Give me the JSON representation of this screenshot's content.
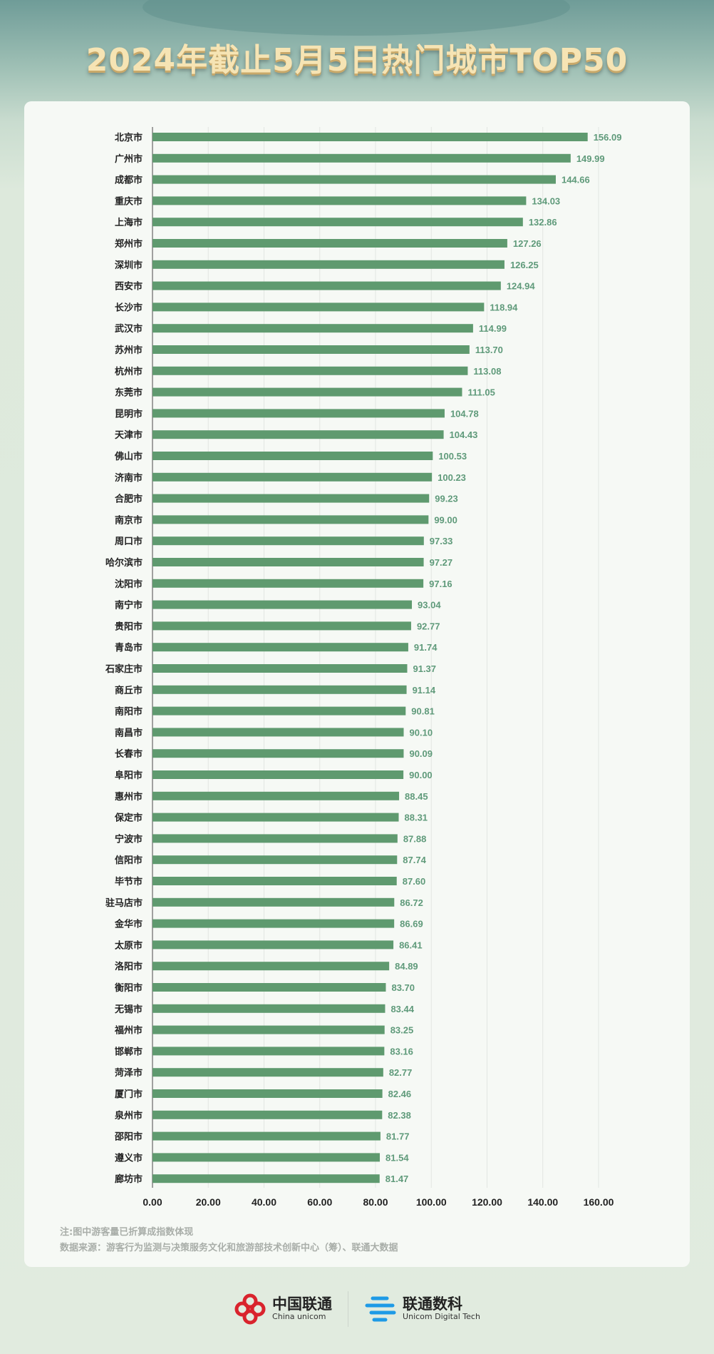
{
  "title": "2024年截止5月5日热门城市TOP50",
  "notes": {
    "note": "注:图中游客量已折算成指数体现",
    "source": "数据来源：游客行为监测与决策服务文化和旅游部技术创新中心（筹）、联通大数据"
  },
  "logos": {
    "unicom_cn": "中国联通",
    "unicom_en": "China unicom",
    "digital_cn": "联通数科",
    "digital_en": "Unicom Digital Tech"
  },
  "colors": {
    "bar": "#5f9a6f",
    "value_label": "#5f9a7a",
    "title": "#f6e4b4"
  },
  "chart_data": {
    "type": "bar",
    "orientation": "horizontal",
    "title": "2024年截止5月5日热门城市TOP50",
    "grid": true,
    "xlim": [
      0,
      160
    ],
    "ticks": [
      "0.00",
      "20.00",
      "40.00",
      "60.00",
      "80.00",
      "100.00",
      "120.00",
      "140.00",
      "160.00"
    ],
    "categories": [
      "北京市",
      "广州市",
      "成都市",
      "重庆市",
      "上海市",
      "郑州市",
      "深圳市",
      "西安市",
      "长沙市",
      "武汉市",
      "苏州市",
      "杭州市",
      "东莞市",
      "昆明市",
      "天津市",
      "佛山市",
      "济南市",
      "合肥市",
      "南京市",
      "周口市",
      "哈尔滨市",
      "沈阳市",
      "南宁市",
      "贵阳市",
      "青岛市",
      "石家庄市",
      "商丘市",
      "南阳市",
      "南昌市",
      "长春市",
      "阜阳市",
      "惠州市",
      "保定市",
      "宁波市",
      "信阳市",
      "毕节市",
      "驻马店市",
      "金华市",
      "太原市",
      "洛阳市",
      "衡阳市",
      "无锡市",
      "福州市",
      "邯郸市",
      "菏泽市",
      "厦门市",
      "泉州市",
      "邵阳市",
      "遵义市",
      "廊坊市"
    ],
    "values": [
      156.09,
      149.99,
      144.66,
      134.03,
      132.86,
      127.26,
      126.25,
      124.94,
      118.94,
      114.99,
      113.7,
      113.08,
      111.05,
      104.78,
      104.43,
      100.53,
      100.23,
      99.23,
      99.0,
      97.33,
      97.27,
      97.16,
      93.04,
      92.77,
      91.74,
      91.37,
      91.14,
      90.81,
      90.1,
      90.09,
      90.0,
      88.45,
      88.31,
      87.88,
      87.74,
      87.6,
      86.72,
      86.69,
      86.41,
      84.89,
      83.7,
      83.44,
      83.25,
      83.16,
      82.77,
      82.46,
      82.38,
      81.77,
      81.54,
      81.47
    ]
  }
}
